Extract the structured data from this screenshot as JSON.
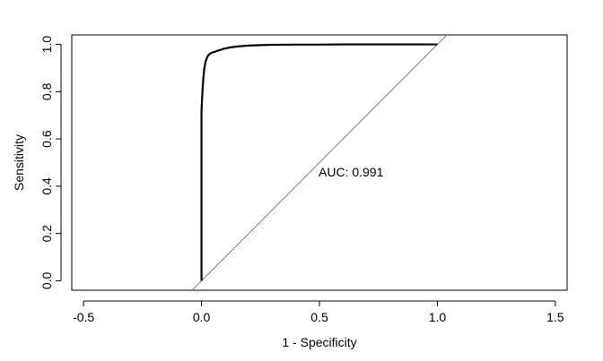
{
  "chart_data": {
    "type": "line",
    "title": "",
    "xlabel": "1 - Specificity",
    "ylabel": "Sensitivity",
    "xlim": [
      -0.55,
      1.55
    ],
    "ylim": [
      -0.04,
      1.04
    ],
    "grid": false,
    "x_ticks": [
      -0.5,
      0.0,
      0.5,
      1.0,
      1.5
    ],
    "x_tick_labels": [
      "-0.5",
      "0.0",
      "0.5",
      "1.0",
      "1.5"
    ],
    "y_ticks": [
      0.0,
      0.2,
      0.4,
      0.6,
      0.8,
      1.0
    ],
    "y_tick_labels": [
      "0.0",
      "0.2",
      "0.4",
      "0.6",
      "0.8",
      "1.0"
    ],
    "annotation": {
      "text": "AUC: 0.991",
      "x": 0.5,
      "y": 0.46
    },
    "reference_line": {
      "x": [
        -0.05,
        1.05
      ],
      "y": [
        -0.05,
        1.05
      ],
      "color": "#808080"
    },
    "series": [
      {
        "color": "#000000",
        "x": [
          0.0,
          0.0,
          0.0,
          0.0,
          0.0,
          0.002,
          0.004,
          0.006,
          0.008,
          0.01,
          0.012,
          0.015,
          0.018,
          0.022,
          0.026,
          0.03,
          0.035,
          0.04,
          0.05,
          0.06,
          0.07,
          0.08,
          0.09,
          0.1,
          0.12,
          0.15,
          0.2,
          0.25,
          0.3,
          0.4,
          0.5,
          0.6,
          0.7,
          0.8,
          0.9,
          1.0
        ],
        "y": [
          0.0,
          0.3,
          0.5,
          0.65,
          0.72,
          0.76,
          0.8,
          0.83,
          0.86,
          0.88,
          0.9,
          0.915,
          0.93,
          0.94,
          0.95,
          0.955,
          0.96,
          0.963,
          0.967,
          0.97,
          0.974,
          0.977,
          0.98,
          0.983,
          0.987,
          0.991,
          0.995,
          0.997,
          0.998,
          0.999,
          0.999,
          1.0,
          1.0,
          1.0,
          1.0,
          1.0
        ]
      }
    ]
  }
}
